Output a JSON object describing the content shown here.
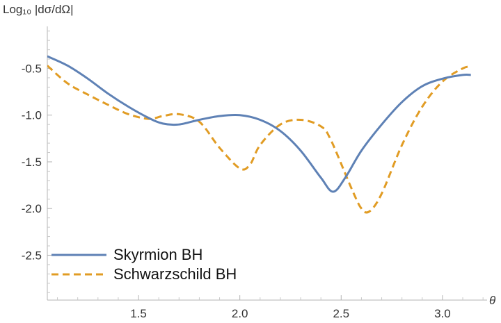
{
  "chart_data": {
    "type": "line",
    "ylabel": "Log₁₀ |dσ/dΩ|",
    "xlabel": "θ",
    "xlim": [
      1.05,
      3.22
    ],
    "ylim": [
      -2.98,
      -0.05
    ],
    "x_ticks": [
      1.5,
      2.0,
      2.5,
      3.0
    ],
    "x_tick_labels": [
      "1.5",
      "2.0",
      "2.5",
      "3.0"
    ],
    "y_ticks": [
      -0.5,
      -1.0,
      -1.5,
      -2.0,
      -2.5
    ],
    "y_tick_labels": [
      "-0.5",
      "-1.0",
      "-1.5",
      "-2.0",
      "-2.5"
    ],
    "grid": false,
    "legend_position": "bottom-left",
    "series": [
      {
        "name": "Skyrmion BH",
        "color": "#5e81b5",
        "style": "solid",
        "x": [
          1.05,
          1.15,
          1.25,
          1.35,
          1.45,
          1.55,
          1.62,
          1.7,
          1.8,
          1.9,
          2.0,
          2.1,
          2.2,
          2.3,
          2.4,
          2.46,
          2.52,
          2.6,
          2.7,
          2.8,
          2.9,
          3.0,
          3.1,
          3.14
        ],
        "y": [
          -0.37,
          -0.47,
          -0.61,
          -0.77,
          -0.91,
          -1.03,
          -1.09,
          -1.1,
          -1.05,
          -1.01,
          -1.0,
          -1.05,
          -1.17,
          -1.38,
          -1.67,
          -1.82,
          -1.67,
          -1.38,
          -1.1,
          -0.86,
          -0.69,
          -0.61,
          -0.57,
          -0.57
        ]
      },
      {
        "name": "Schwarzschild BH",
        "color": "#e19c24",
        "style": "dashed",
        "x": [
          1.05,
          1.15,
          1.25,
          1.35,
          1.45,
          1.55,
          1.62,
          1.7,
          1.8,
          1.9,
          2.0,
          2.05,
          2.1,
          2.2,
          2.3,
          2.4,
          2.45,
          2.55,
          2.6,
          2.64,
          2.7,
          2.8,
          2.9,
          3.0,
          3.1,
          3.14
        ],
        "y": [
          -0.47,
          -0.66,
          -0.78,
          -0.89,
          -0.99,
          -1.04,
          -1.01,
          -0.99,
          -1.07,
          -1.35,
          -1.57,
          -1.53,
          -1.32,
          -1.1,
          -1.05,
          -1.12,
          -1.27,
          -1.78,
          -2.0,
          -2.03,
          -1.84,
          -1.32,
          -0.91,
          -0.64,
          -0.5,
          -0.48
        ]
      }
    ]
  }
}
